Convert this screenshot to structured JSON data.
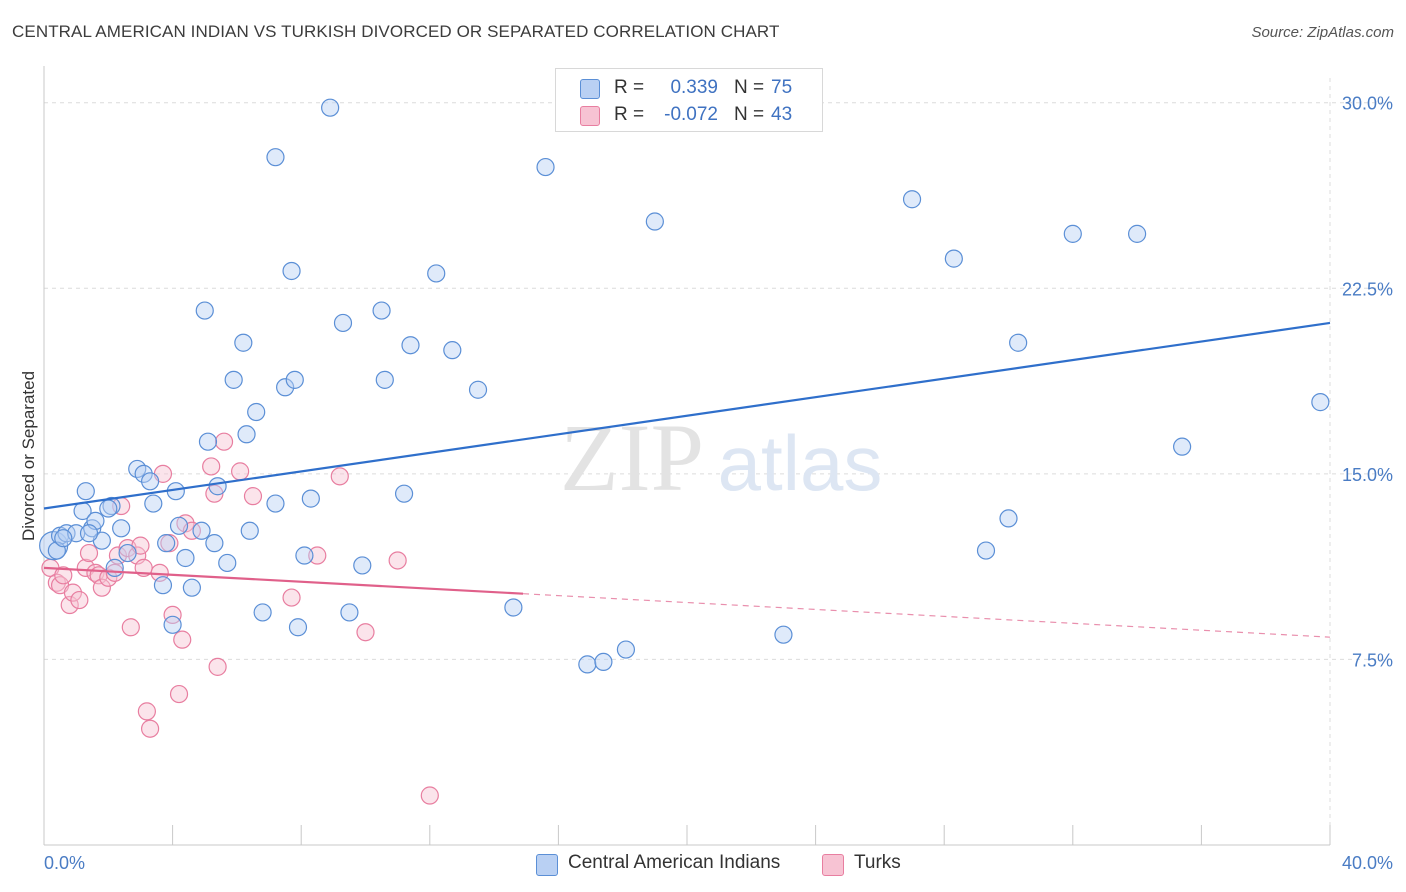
{
  "title": "CENTRAL AMERICAN INDIAN VS TURKISH DIVORCED OR SEPARATED CORRELATION CHART",
  "source": "Source: ZipAtlas.com",
  "watermark": {
    "zip": "ZIP",
    "atlas": "atlas"
  },
  "colors": {
    "blue": "#5b8fd6",
    "blue_fill": "#b9d0f3",
    "blue_line": "#2f6fcb",
    "pink": "#e87ea0",
    "pink_fill": "#f7c3d3",
    "pink_line": "#e0608a",
    "grid": "#dcdcdc",
    "axis_text": "#4a7cc4"
  },
  "legend": {
    "rows": [
      {
        "r_label": "R =",
        "r_value": "0.339",
        "n_label": "N =",
        "n_value": "75"
      },
      {
        "r_label": "R =",
        "r_value": "-0.072",
        "n_label": "N =",
        "n_value": "43"
      }
    ]
  },
  "bottom_legend": [
    "Central American Indians",
    "Turks"
  ],
  "chart_data": {
    "type": "scatter",
    "title": "CENTRAL AMERICAN INDIAN VS TURKISH DIVORCED OR SEPARATED CORRELATION CHART",
    "xlabel": "",
    "ylabel": "Divorced or Separated",
    "xlim": [
      0,
      40
    ],
    "ylim": [
      0,
      31
    ],
    "x_tick_labels": [
      "0.0%",
      "40.0%"
    ],
    "y_ticks": [
      7.5,
      15.0,
      22.5,
      30.0
    ],
    "y_tick_labels": [
      "7.5%",
      "15.0%",
      "22.5%",
      "30.0%"
    ],
    "grid": true,
    "legend_position": "top-center",
    "series": [
      {
        "name": "Central American Indians",
        "r": 0.339,
        "n": 75,
        "trend": {
          "x": [
            0,
            40
          ],
          "y": [
            13.6,
            21.1
          ],
          "dashed_from": null
        },
        "points": [
          [
            0.3,
            12.1
          ],
          [
            0.5,
            12.5
          ],
          [
            0.7,
            12.6
          ],
          [
            1.0,
            12.6
          ],
          [
            1.2,
            13.5
          ],
          [
            1.3,
            14.3
          ],
          [
            1.5,
            12.8
          ],
          [
            1.6,
            13.1
          ],
          [
            1.8,
            12.3
          ],
          [
            2.1,
            13.7
          ],
          [
            2.2,
            11.2
          ],
          [
            2.4,
            12.8
          ],
          [
            2.6,
            11.8
          ],
          [
            2.9,
            15.2
          ],
          [
            3.1,
            15.0
          ],
          [
            3.3,
            14.7
          ],
          [
            3.4,
            13.8
          ],
          [
            3.7,
            10.5
          ],
          [
            3.8,
            12.2
          ],
          [
            4.0,
            8.9
          ],
          [
            4.1,
            14.3
          ],
          [
            4.2,
            12.9
          ],
          [
            4.4,
            11.6
          ],
          [
            4.6,
            10.4
          ],
          [
            4.9,
            12.7
          ],
          [
            5.0,
            21.6
          ],
          [
            5.1,
            16.3
          ],
          [
            5.3,
            12.2
          ],
          [
            5.4,
            14.5
          ],
          [
            5.7,
            11.4
          ],
          [
            5.9,
            18.8
          ],
          [
            6.2,
            20.3
          ],
          [
            6.3,
            16.6
          ],
          [
            6.4,
            12.7
          ],
          [
            6.6,
            17.5
          ],
          [
            6.8,
            9.4
          ],
          [
            7.2,
            13.8
          ],
          [
            7.2,
            27.8
          ],
          [
            7.5,
            18.5
          ],
          [
            7.7,
            23.2
          ],
          [
            7.8,
            18.8
          ],
          [
            7.9,
            8.8
          ],
          [
            8.3,
            14.0
          ],
          [
            8.1,
            11.7
          ],
          [
            8.9,
            29.8
          ],
          [
            9.3,
            21.1
          ],
          [
            9.5,
            9.4
          ],
          [
            9.9,
            11.3
          ],
          [
            10.5,
            21.6
          ],
          [
            10.6,
            18.8
          ],
          [
            11.2,
            14.2
          ],
          [
            11.4,
            20.2
          ],
          [
            12.2,
            23.1
          ],
          [
            12.7,
            20.0
          ],
          [
            13.5,
            18.4
          ],
          [
            14.6,
            9.6
          ],
          [
            15.6,
            27.4
          ],
          [
            16.9,
            7.3
          ],
          [
            17.4,
            7.4
          ],
          [
            18.1,
            7.9
          ],
          [
            19.0,
            25.2
          ],
          [
            23.0,
            8.5
          ],
          [
            27.0,
            26.1
          ],
          [
            28.3,
            23.7
          ],
          [
            29.3,
            11.9
          ],
          [
            30.0,
            13.2
          ],
          [
            30.3,
            20.3
          ],
          [
            32.0,
            24.7
          ],
          [
            34.0,
            24.7
          ],
          [
            35.4,
            16.1
          ],
          [
            39.7,
            17.9
          ],
          [
            0.4,
            11.9
          ],
          [
            0.6,
            12.4
          ],
          [
            2.0,
            13.6
          ],
          [
            1.4,
            12.6
          ]
        ]
      },
      {
        "name": "Turks",
        "r": -0.072,
        "n": 43,
        "trend": {
          "x": [
            0,
            40
          ],
          "y": [
            11.2,
            8.4
          ],
          "dashed_from": 14.9
        },
        "points": [
          [
            0.2,
            11.2
          ],
          [
            0.4,
            10.6
          ],
          [
            0.5,
            10.5
          ],
          [
            0.6,
            10.9
          ],
          [
            0.8,
            9.7
          ],
          [
            0.9,
            10.2
          ],
          [
            1.1,
            9.9
          ],
          [
            1.3,
            11.2
          ],
          [
            1.4,
            11.8
          ],
          [
            1.6,
            11.0
          ],
          [
            1.7,
            10.9
          ],
          [
            1.8,
            10.4
          ],
          [
            2.0,
            10.8
          ],
          [
            2.2,
            11.0
          ],
          [
            2.3,
            11.7
          ],
          [
            2.4,
            13.7
          ],
          [
            2.6,
            12.0
          ],
          [
            2.7,
            8.8
          ],
          [
            2.9,
            11.7
          ],
          [
            3.0,
            12.1
          ],
          [
            3.1,
            11.2
          ],
          [
            3.2,
            5.4
          ],
          [
            3.3,
            4.7
          ],
          [
            3.6,
            11.0
          ],
          [
            3.7,
            15.0
          ],
          [
            3.9,
            12.2
          ],
          [
            4.0,
            9.3
          ],
          [
            4.2,
            6.1
          ],
          [
            4.3,
            8.3
          ],
          [
            4.4,
            13.0
          ],
          [
            4.6,
            12.7
          ],
          [
            5.2,
            15.3
          ],
          [
            5.3,
            14.2
          ],
          [
            5.4,
            7.2
          ],
          [
            5.6,
            16.3
          ],
          [
            6.1,
            15.1
          ],
          [
            6.5,
            14.1
          ],
          [
            7.7,
            10.0
          ],
          [
            8.5,
            11.7
          ],
          [
            9.2,
            14.9
          ],
          [
            10.0,
            8.6
          ],
          [
            11.0,
            11.5
          ],
          [
            12.0,
            2.0
          ]
        ]
      }
    ]
  }
}
